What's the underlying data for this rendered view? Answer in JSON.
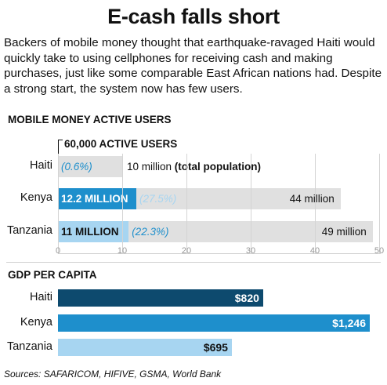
{
  "title": "E-cash falls short",
  "intro": "Backers of mobile money thought that earthquake-ravaged Haiti would quickly take to using cellphones for receiving cash and making purchases, just like some comparable East African nations had. Despite a strong start, the system now has few users.",
  "source": "Sources:  SAFARICOM, HIFIVE, GSMA, World Bank",
  "colors": {
    "navy": "#0d4a6e",
    "blue": "#1e8fcc",
    "light_blue": "#a7d5f1",
    "gray": "#e0e0e0"
  },
  "chart_data": [
    {
      "type": "bar",
      "title": "MOBILE MONEY ACTIVE USERS",
      "annotation": "60,000 ACTIVE USERS",
      "categories": [
        "Haiti",
        "Kenya",
        "Tanzania"
      ],
      "series": [
        {
          "name": "total population",
          "values": [
            10,
            44,
            49
          ]
        },
        {
          "name": "active users",
          "values": [
            0.06,
            12.2,
            11
          ]
        }
      ],
      "user_labels": [
        "",
        "12.2 MILLION",
        "11 MILLION"
      ],
      "pct_labels": [
        "(0.6%)",
        "(27.5%)",
        "(22.3%)"
      ],
      "pop_labels": [
        {
          "value": "10 million",
          "note": "(total population)"
        },
        {
          "value": "44 million",
          "note": ""
        },
        {
          "value": "49 million",
          "note": ""
        }
      ],
      "xlim": [
        0,
        50
      ],
      "xticks": [
        "0",
        "10",
        "20",
        "30",
        "40",
        "50"
      ]
    },
    {
      "type": "bar",
      "title": "GDP PER CAPITA",
      "categories": [
        "Haiti",
        "Kenya",
        "Tanzania"
      ],
      "values": [
        820,
        1246,
        695
      ],
      "value_labels": [
        "$820",
        "$1,246",
        "$695"
      ]
    }
  ]
}
